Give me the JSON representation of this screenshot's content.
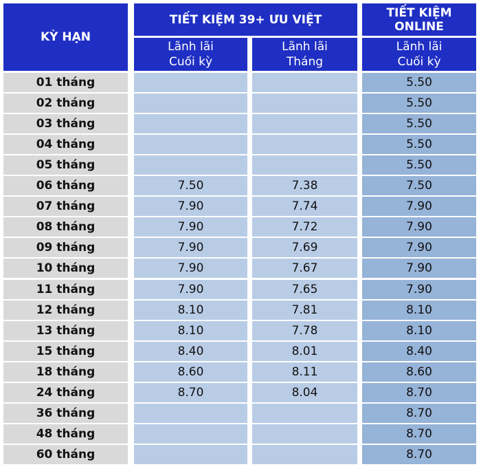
{
  "table": {
    "header": {
      "term": "KỲ HẠN",
      "group_1": "TIẾT KIỆM 39+ ƯU VIỆT",
      "group_2": [
        "TIẾT KIỆM",
        "ONLINE"
      ],
      "columns": [
        [
          "Lãnh lãi",
          "Cuối kỳ"
        ],
        [
          "Lãnh lãi",
          "Tháng"
        ],
        [
          "Lãnh lãi",
          "Cuối kỳ"
        ]
      ]
    },
    "rows": [
      [
        "01 tháng",
        null,
        null,
        "5.50"
      ],
      [
        "02 tháng",
        null,
        null,
        "5.50"
      ],
      [
        "03 tháng",
        null,
        null,
        "5.50"
      ],
      [
        "04 tháng",
        null,
        null,
        "5.50"
      ],
      [
        "05 tháng",
        null,
        null,
        "5.50"
      ],
      [
        "06 tháng",
        "7.50",
        "7.38",
        "7.50"
      ],
      [
        "07 tháng",
        "7.90",
        "7.74",
        "7.90"
      ],
      [
        "08 tháng",
        "7.90",
        "7.72",
        "7.90"
      ],
      [
        "09 tháng",
        "7.90",
        "7.69",
        "7.90"
      ],
      [
        "10 tháng",
        "7.90",
        "7.67",
        "7.90"
      ],
      [
        "11 tháng",
        "7.90",
        "7.65",
        "7.90"
      ],
      [
        "12 tháng",
        "8.10",
        "7.81",
        "8.10"
      ],
      [
        "13 tháng",
        "8.10",
        "7.78",
        "8.10"
      ],
      [
        "15 tháng",
        "8.40",
        "8.01",
        "8.40"
      ],
      [
        "18 tháng",
        "8.60",
        "8.11",
        "8.60"
      ],
      [
        "24 tháng",
        "8.70",
        "8.04",
        "8.70"
      ],
      [
        "36 tháng",
        null,
        null,
        "8.70"
      ],
      [
        "48 tháng",
        null,
        null,
        "8.70"
      ],
      [
        "60 tháng",
        null,
        null,
        "8.70"
      ]
    ]
  }
}
